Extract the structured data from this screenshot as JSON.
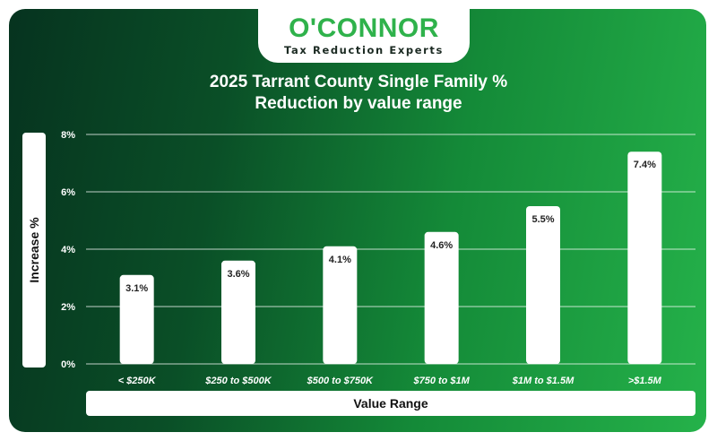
{
  "logo": {
    "name": "O'CONNOR",
    "tagline": "Tax Reduction Experts"
  },
  "colors": {
    "accent": "#2fb24b",
    "bar": "#ffffff",
    "bg_dark": "#06331f",
    "bg_light": "#25b24a"
  },
  "chart_data": {
    "type": "bar",
    "title_line1": "2025 Tarrant County Single Family %",
    "title_line2": "Reduction by value range",
    "xlabel": "Value Range",
    "ylabel": "Increase %",
    "categories": [
      "< $250K",
      "$250 to $500K",
      "$500 to $750K",
      "$750 to $1M",
      "$1M to $1.5M",
      ">$1.5M"
    ],
    "values": [
      3.1,
      3.6,
      4.1,
      4.6,
      5.5,
      7.4
    ],
    "value_labels": [
      "3.1%",
      "3.6%",
      "4.1%",
      "4.6%",
      "5.5%",
      "7.4%"
    ],
    "yticks": [
      "0%",
      "2%",
      "4%",
      "6%",
      "8%"
    ],
    "ylim": [
      0,
      8
    ],
    "grid": true
  }
}
